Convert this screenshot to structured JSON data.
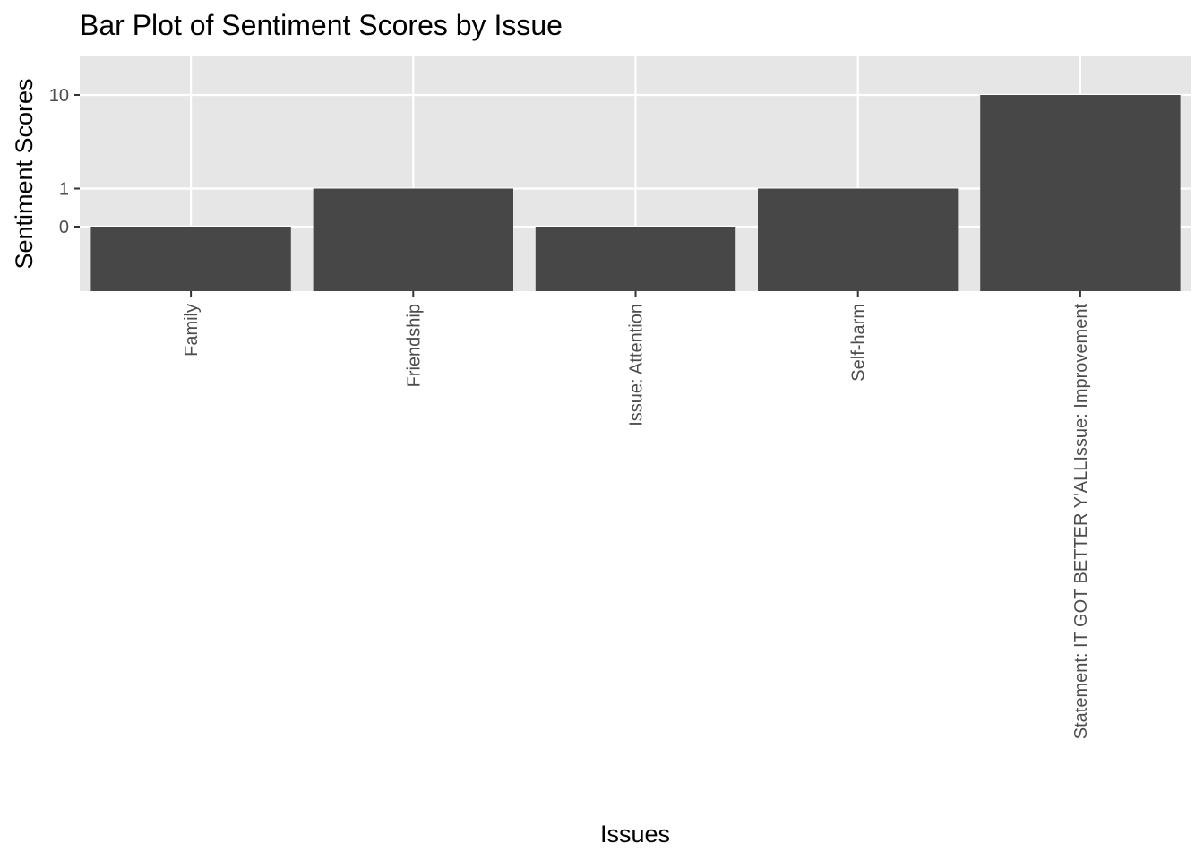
{
  "chart_data": {
    "type": "bar",
    "title": "Bar Plot of Sentiment Scores by Issue",
    "xlabel": "Issues",
    "ylabel": "Sentiment Scores",
    "categories": [
      "Family",
      "Friendship",
      "Issue: Attention",
      "Self-harm",
      "Statement: IT GOT BETTER Y'ALLIssue: Improvement"
    ],
    "values": [
      0,
      1,
      0,
      1,
      10
    ],
    "y_ticks": [
      {
        "value": 0,
        "label": "0"
      },
      {
        "value": 1,
        "label": "1"
      },
      {
        "value": 10,
        "label": "10"
      }
    ],
    "y_scale": "log10(x+1)",
    "bar_color": "#474747",
    "panel_background": "#e6e6e6",
    "grid": true,
    "legend": "none"
  }
}
